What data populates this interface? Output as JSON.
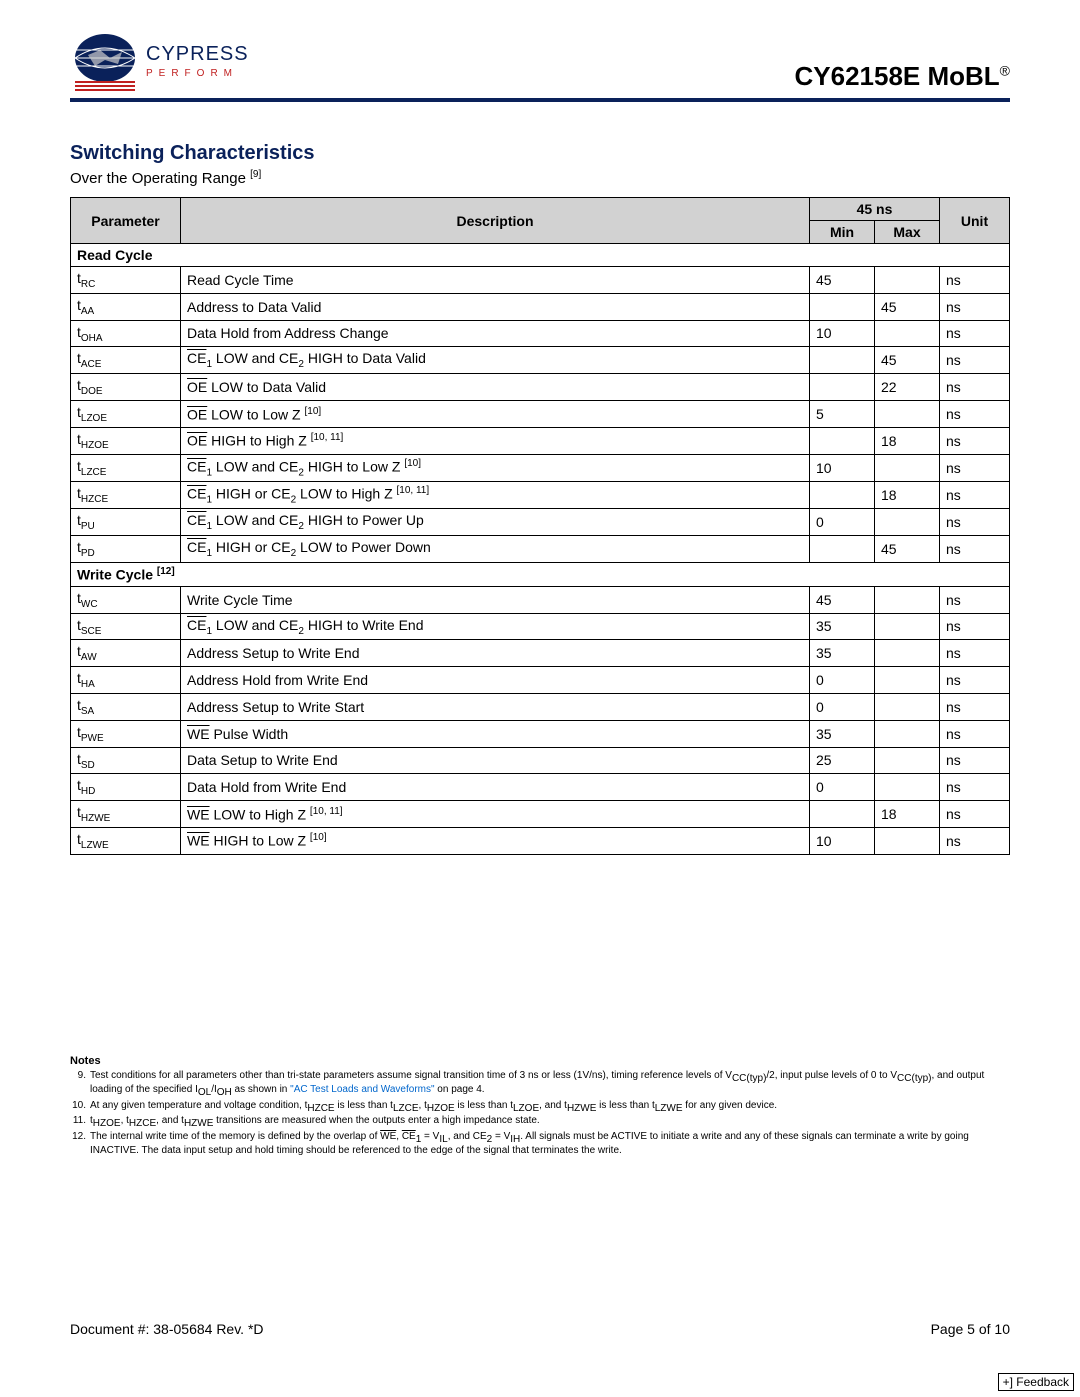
{
  "header": {
    "brand_main": "CYPRESS",
    "brand_tag": "PERFORM",
    "product": "CY62158E MoBL",
    "product_reg": "®"
  },
  "section": {
    "title": "Switching Characteristics",
    "subtitle_pre": "Over the Operating Range ",
    "subtitle_ref": "[9]"
  },
  "table": {
    "headers": {
      "param": "Parameter",
      "desc": "Description",
      "timing": "45 ns",
      "min": "Min",
      "max": "Max",
      "unit": "Unit"
    },
    "section1": "Read Cycle",
    "rows1": [
      {
        "p": "t",
        "s": "RC",
        "d": "Read Cycle Time",
        "min": "45",
        "max": "",
        "u": "ns"
      },
      {
        "p": "t",
        "s": "AA",
        "d": "Address to Data Valid",
        "min": "",
        "max": "45",
        "u": "ns"
      },
      {
        "p": "t",
        "s": "OHA",
        "d": "Data Hold from Address Change",
        "min": "10",
        "max": "",
        "u": "ns"
      },
      {
        "p": "t",
        "s": "ACE",
        "d_html": "<span class='ov'>CE</span><sub>1</sub> LOW and CE<sub>2</sub> HIGH to Data Valid",
        "min": "",
        "max": "45",
        "u": "ns"
      },
      {
        "p": "t",
        "s": "DOE",
        "d_html": "<span class='ov'>OE</span> LOW to Data Valid",
        "min": "",
        "max": "22",
        "u": "ns"
      },
      {
        "p": "t",
        "s": "LZOE",
        "d_html": "<span class='ov'>OE</span> LOW to Low Z <sup class='ref'>[10]</sup>",
        "min": "5",
        "max": "",
        "u": "ns"
      },
      {
        "p": "t",
        "s": "HZOE",
        "d_html": "<span class='ov'>OE</span> HIGH to High Z <sup class='ref'>[10, 11]</sup>",
        "min": "",
        "max": "18",
        "u": "ns"
      },
      {
        "p": "t",
        "s": "LZCE",
        "d_html": "<span class='ov'>CE</span><sub>1</sub> LOW and CE<sub>2</sub> HIGH to Low Z <sup class='ref'>[10]</sup>",
        "min": "10",
        "max": "",
        "u": "ns"
      },
      {
        "p": "t",
        "s": "HZCE",
        "d_html": "<span class='ov'>CE</span><sub>1</sub> HIGH or CE<sub>2</sub> LOW to High Z <sup class='ref'>[10, 11]</sup>",
        "min": "",
        "max": "18",
        "u": "ns"
      },
      {
        "p": "t",
        "s": "PU",
        "d_html": "<span class='ov'>CE</span><sub>1</sub> LOW and CE<sub>2</sub> HIGH to Power Up",
        "min": "0",
        "max": "",
        "u": "ns"
      },
      {
        "p": "t",
        "s": "PD",
        "d_html": "<span class='ov'>CE</span><sub>1</sub> HIGH or CE<sub>2</sub> LOW to Power Down",
        "min": "",
        "max": "45",
        "u": "ns"
      }
    ],
    "section2_html": "Write Cycle <sup class='ref'>[12]</sup>",
    "rows2": [
      {
        "p": "t",
        "s": "WC",
        "d": "Write Cycle Time",
        "min": "45",
        "max": "",
        "u": "ns"
      },
      {
        "p": "t",
        "s": "SCE",
        "d_html": "<span class='ov'>CE</span><sub>1</sub> LOW and CE<sub>2</sub> HIGH to Write End",
        "min": "35",
        "max": "",
        "u": "ns"
      },
      {
        "p": "t",
        "s": "AW",
        "d": "Address Setup to Write End",
        "min": "35",
        "max": "",
        "u": "ns"
      },
      {
        "p": "t",
        "s": "HA",
        "d": "Address Hold from Write End",
        "min": "0",
        "max": "",
        "u": "ns"
      },
      {
        "p": "t",
        "s": "SA",
        "d": "Address Setup to Write Start",
        "min": "0",
        "max": "",
        "u": "ns"
      },
      {
        "p": "t",
        "s": "PWE",
        "d_html": "<span class='ov'>WE</span> Pulse Width",
        "min": "35",
        "max": "",
        "u": "ns"
      },
      {
        "p": "t",
        "s": "SD",
        "d": "Data Setup to Write End",
        "min": "25",
        "max": "",
        "u": "ns"
      },
      {
        "p": "t",
        "s": "HD",
        "d": "Data Hold from Write End",
        "min": "0",
        "max": "",
        "u": "ns"
      },
      {
        "p": "t",
        "s": "HZWE",
        "d_html": "<span class='ov'>WE</span> LOW to High Z <sup class='ref'>[10, 11]</sup>",
        "min": "",
        "max": "18",
        "u": "ns"
      },
      {
        "p": "t",
        "s": "LZWE",
        "d_html": "<span class='ov'>WE</span> HIGH to Low Z <sup class='ref'>[10]</sup>",
        "min": "10",
        "max": "",
        "u": "ns"
      }
    ]
  },
  "notes": {
    "title": "Notes",
    "items": [
      {
        "n": "9.",
        "t_html": "Test conditions for all parameters other than tri-state parameters assume signal transition time of 3 ns or less (1V/ns), timing reference levels of V<sub>CC(typ)</sub>/2, input pulse levels of 0 to V<sub>CC(typ)</sub>, and output loading of the specified I<sub>OL</sub>/I<sub>OH</sub> as shown in <span class='link'>\"AC Test Loads and Waveforms\"</span> on page 4."
      },
      {
        "n": "10.",
        "t_html": "At any given temperature and voltage condition, t<sub>HZCE</sub> is less than t<sub>LZCE</sub>, t<sub>HZOE</sub> is less than t<sub>LZOE</sub>, and t<sub>HZWE</sub> is less than t<sub>LZWE</sub> for any given device."
      },
      {
        "n": "11.",
        "t_html": "t<sub>HZOE</sub>, t<sub>HZCE</sub>, and t<sub>HZWE</sub> transitions are measured when the outputs enter a high impedance state."
      },
      {
        "n": "12.",
        "t_html": "The internal write time of the memory is defined by the overlap of <span class='ov'>WE</span>, <span class='ov'>CE</span><sub>1</sub> = V<sub>IL</sub>, and CE<sub>2</sub> = V<sub>IH</sub>. All signals must be ACTIVE to initiate a write and any of these signals can terminate a write by going INACTIVE. The data input setup and hold timing should be referenced to the edge of the signal that terminates the write."
      }
    ]
  },
  "footer": {
    "doc": "Document #: 38-05684 Rev. *D",
    "page": "Page 5 of 10",
    "feedback": "+] Feedback"
  }
}
